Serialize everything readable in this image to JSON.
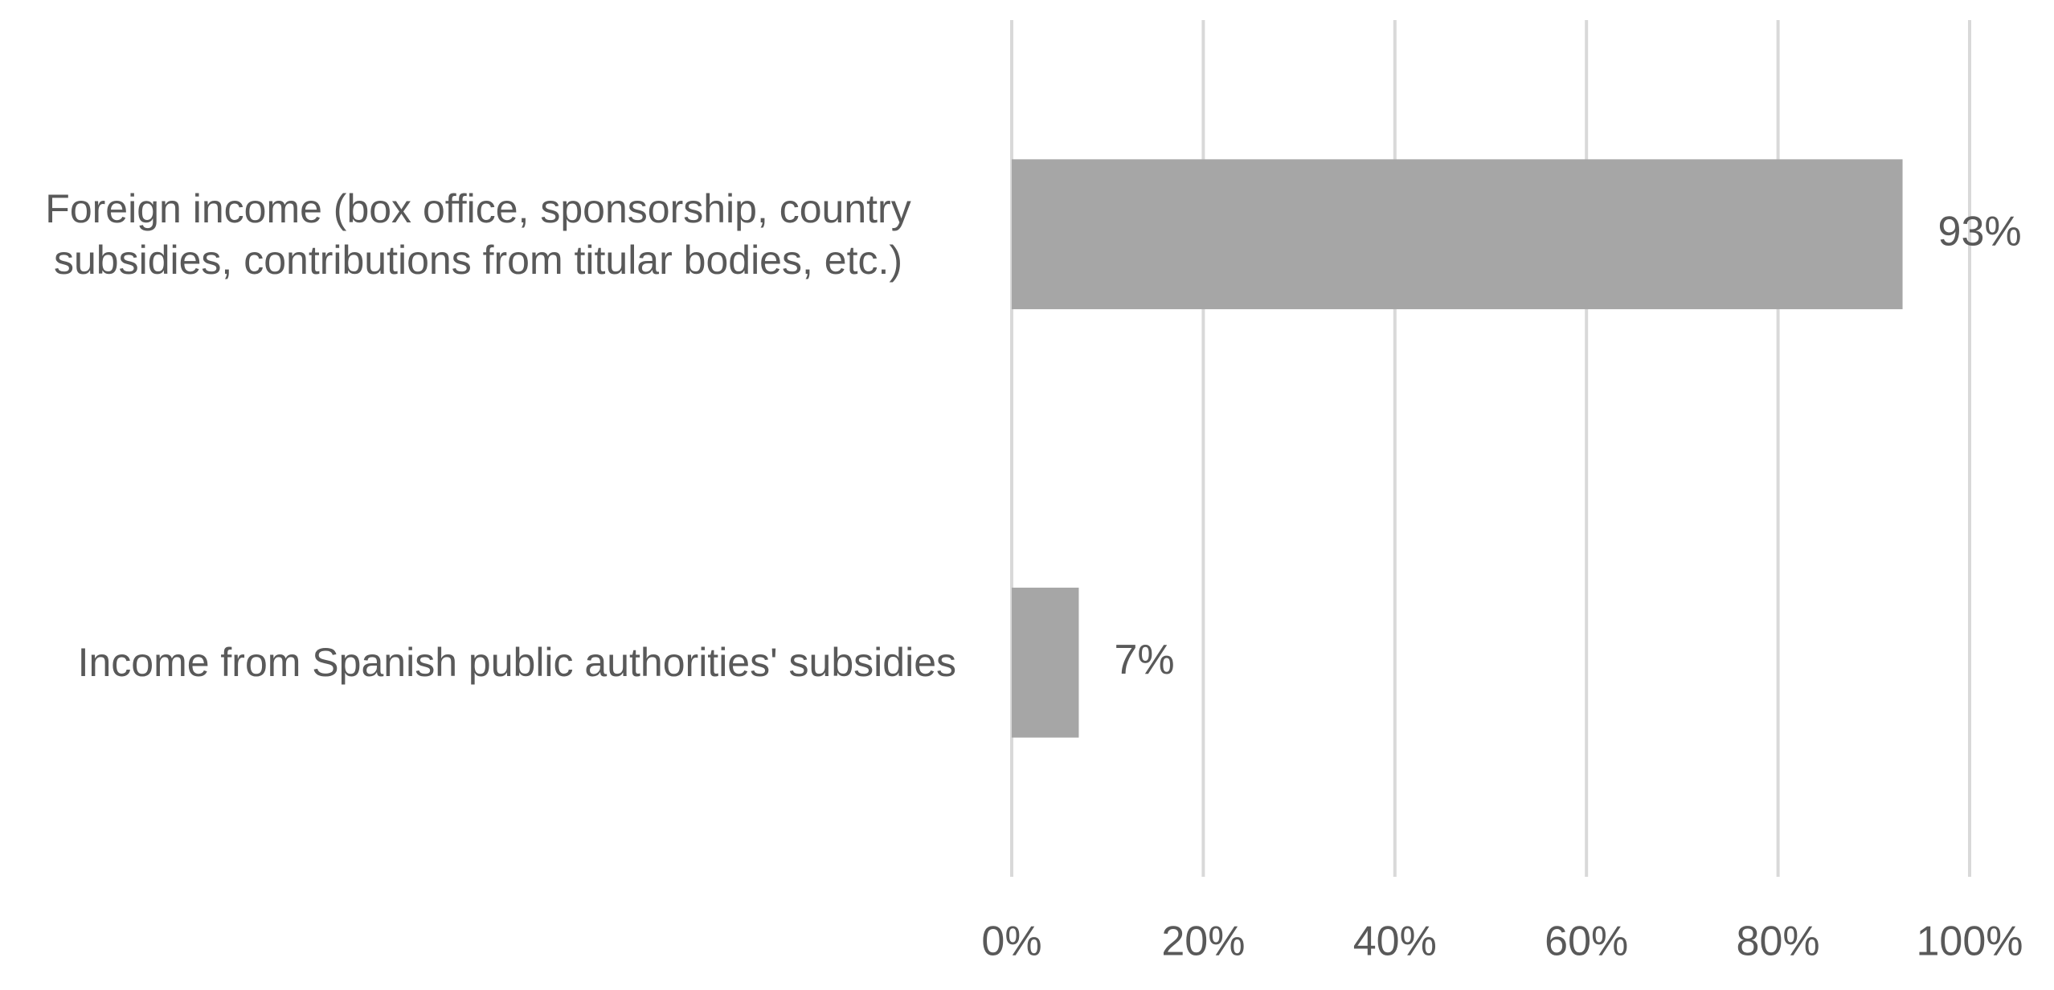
{
  "chart_data": {
    "type": "hbar",
    "categories": [
      "Foreign income (box office, sponsorship, country subsidies, contributions from titular bodies, etc.)",
      "Income from Spanish public authorities' subsidies"
    ],
    "values": [
      93,
      7
    ],
    "value_labels": [
      "93%",
      "7%"
    ],
    "color": "#a6a6a6",
    "xlim": [
      0,
      100
    ],
    "xticks": [
      {
        "value": 0,
        "label": "0%"
      },
      {
        "value": 20,
        "label": "20%"
      },
      {
        "value": 40,
        "label": "40%"
      },
      {
        "value": 60,
        "label": "60%"
      },
      {
        "value": 80,
        "label": "80%"
      },
      {
        "value": 100,
        "label": "100%"
      }
    ],
    "grid": true
  }
}
